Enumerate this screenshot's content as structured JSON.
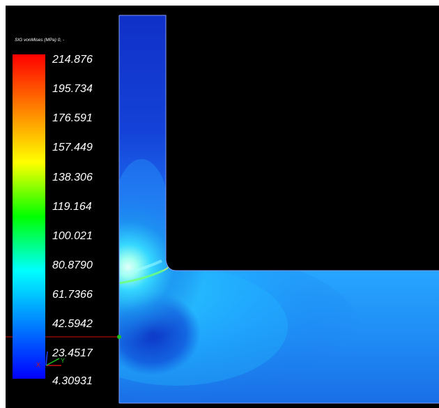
{
  "legend": {
    "title": "SIG vonMises (MPa) 0, -",
    "ticks": [
      "214.876",
      "195.734",
      "176.591",
      "157.449",
      "138.306",
      "119.164",
      "100.021",
      "80.8790",
      "61.7366",
      "42.5942",
      "23.4517",
      "4.30931"
    ],
    "range": [
      4.30931,
      214.876
    ],
    "colormap": [
      "#0000ff",
      "#0080ff",
      "#00ffff",
      "#00ff00",
      "#ffff00",
      "#ff8000",
      "#ff0000"
    ]
  },
  "axes_triad": {
    "x_label": "X",
    "y_label": "Y"
  },
  "colors": {
    "background": "#000000",
    "model_outline": "#7f9cff",
    "origin_line": "#d01010"
  }
}
